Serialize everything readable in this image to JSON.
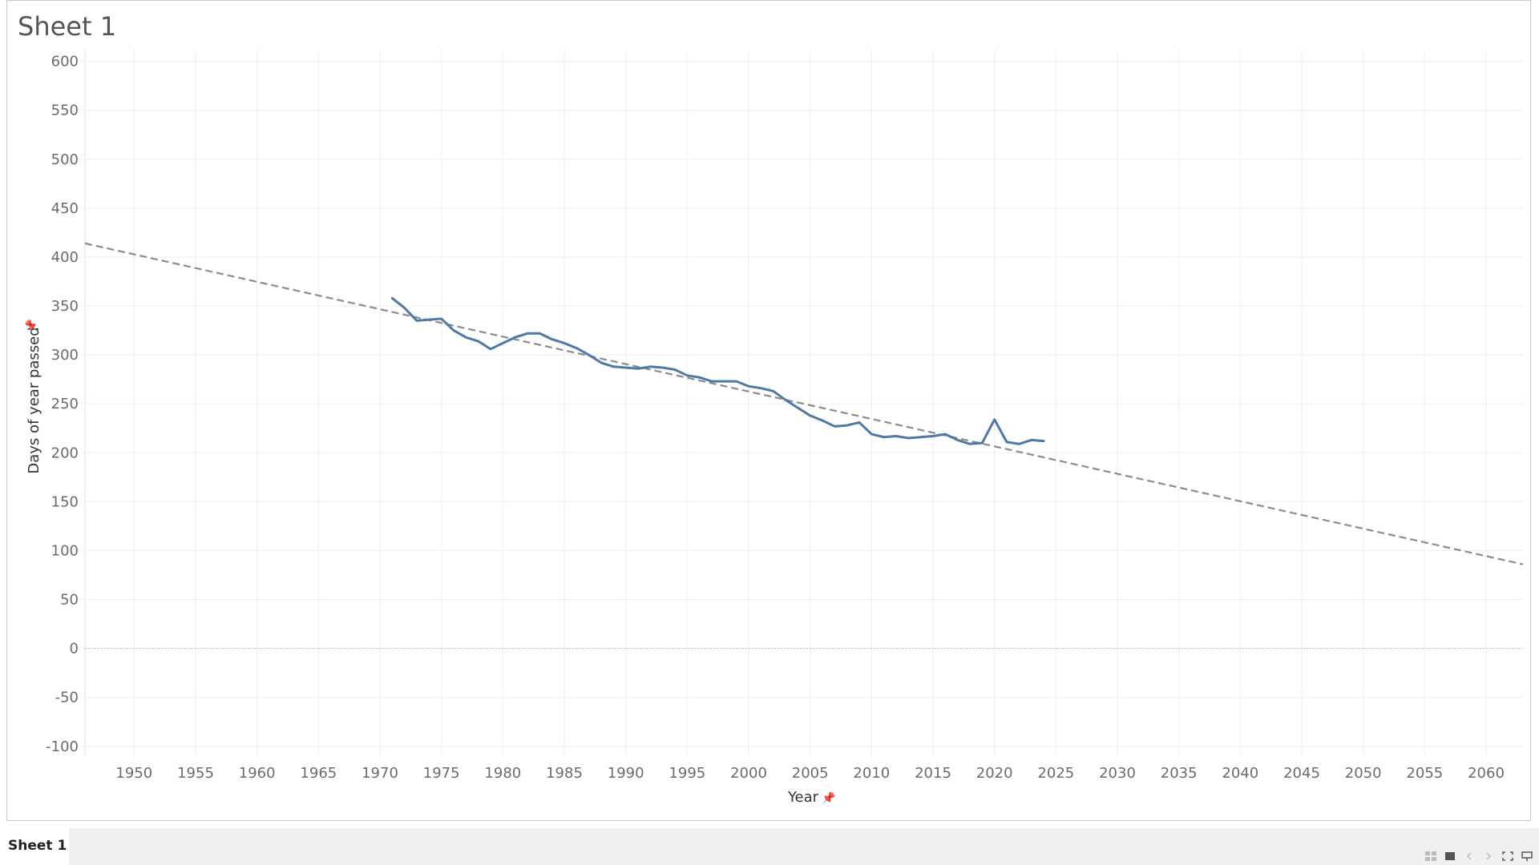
{
  "sheet": {
    "title": "Sheet 1"
  },
  "tabs": [
    {
      "label": "Sheet 1",
      "active": true
    }
  ],
  "controls": [
    "grid-view-icon",
    "film-strip-icon",
    "prev-icon",
    "next-icon",
    "fullscreen-icon",
    "presentation-icon"
  ],
  "colors": {
    "line": "#4e79a7",
    "trend": "#8c8c8c",
    "grid": "#eeeeee",
    "zero": "#b4b4b4"
  },
  "chart_data": {
    "type": "line",
    "title": "Sheet 1",
    "xlabel": "Year",
    "ylabel": "Days of year passed",
    "xlim": [
      1946,
      2063
    ],
    "ylim": [
      -110,
      612
    ],
    "x_ticks": [
      1950,
      1955,
      1960,
      1965,
      1970,
      1975,
      1980,
      1985,
      1990,
      1995,
      2000,
      2005,
      2010,
      2015,
      2020,
      2025,
      2030,
      2035,
      2040,
      2045,
      2050,
      2055,
      2060
    ],
    "y_ticks": [
      -100,
      -50,
      0,
      50,
      100,
      150,
      200,
      250,
      300,
      350,
      400,
      450,
      500,
      550,
      600
    ],
    "grid": true,
    "series": [
      {
        "x": [
          1971,
          1972,
          1973,
          1974,
          1975,
          1976,
          1977,
          1978,
          1979,
          1980,
          1981,
          1982,
          1983,
          1984,
          1985,
          1986,
          1987,
          1988,
          1989,
          1990,
          1991,
          1992,
          1993,
          1994,
          1995,
          1996,
          1997,
          1998,
          1999,
          2000,
          2001,
          2002,
          2003,
          2004,
          2005,
          2006,
          2007,
          2008,
          2009,
          2010,
          2011,
          2012,
          2013,
          2014,
          2015,
          2016,
          2017,
          2018,
          2019,
          2020,
          2021,
          2022,
          2023,
          2024
        ],
        "y": [
          358,
          348,
          335,
          336,
          337,
          325,
          318,
          314,
          306,
          312,
          318,
          322,
          322,
          316,
          312,
          307,
          300,
          292,
          288,
          287,
          286,
          288,
          287,
          285,
          279,
          277,
          273,
          273,
          273,
          268,
          266,
          263,
          254,
          246,
          238,
          233,
          227,
          228,
          231,
          219,
          216,
          217,
          215,
          216,
          217,
          219,
          213,
          209,
          210,
          234,
          211,
          209,
          213,
          212
        ]
      }
    ],
    "trend_line": {
      "style": "dashed",
      "x": [
        1946,
        2063
      ],
      "y": [
        414,
        86
      ]
    }
  }
}
